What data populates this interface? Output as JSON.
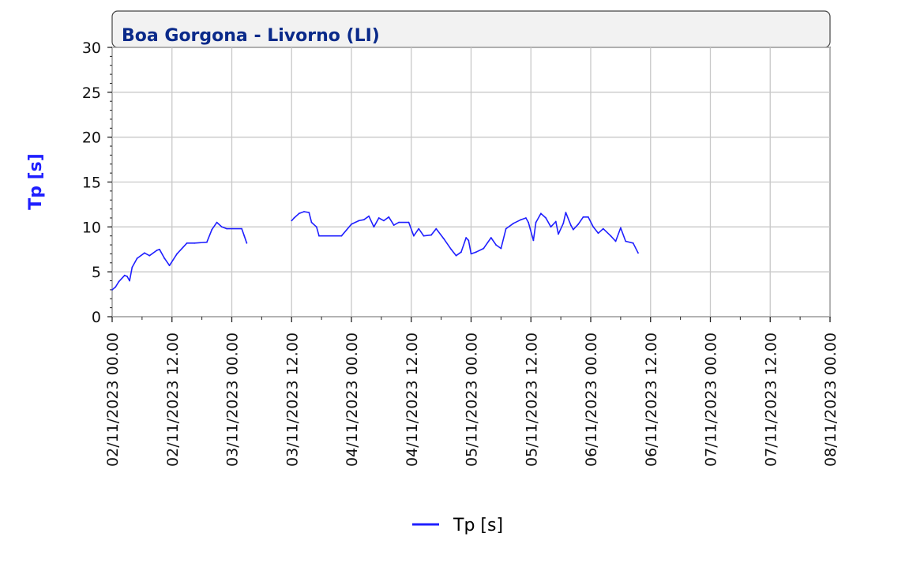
{
  "chart_data": {
    "type": "line",
    "title": "Boa Gorgona - Livorno (LI)",
    "ylabel": "Tp [s]",
    "xlabel": "",
    "ylim": [
      0,
      30
    ],
    "yticks": [
      "0",
      "5",
      "10",
      "15",
      "20",
      "25",
      "30"
    ],
    "xlim": [
      "2023-11-02 00:00",
      "2023-11-08 00:00"
    ],
    "xticks": [
      "02/11/2023 00.00",
      "02/11/2023 12.00",
      "03/11/2023 00.00",
      "03/11/2023 12.00",
      "04/11/2023 00.00",
      "04/11/2023 12.00",
      "05/11/2023 00.00",
      "05/11/2023 12.00",
      "06/11/2023 00.00",
      "06/11/2023 12.00",
      "07/11/2023 00.00",
      "07/11/2023 12.00",
      "08/11/2023 00.00"
    ],
    "grid": true,
    "legend_position": "bottom-center",
    "series": [
      {
        "name": "Tp [s]",
        "color": "#1f1fff",
        "segments": [
          [
            [
              "2023-11-02 00:00",
              3.0
            ],
            [
              "2023-11-02 00:40",
              3.3
            ],
            [
              "2023-11-02 01:20",
              3.9
            ],
            [
              "2023-11-02 02:30",
              4.6
            ],
            [
              "2023-11-02 03:00",
              4.5
            ],
            [
              "2023-11-02 03:30",
              4.0
            ],
            [
              "2023-11-02 04:00",
              5.5
            ],
            [
              "2023-11-02 05:00",
              6.5
            ],
            [
              "2023-11-02 06:30",
              7.1
            ],
            [
              "2023-11-02 07:30",
              6.8
            ],
            [
              "2023-11-02 09:00",
              7.4
            ],
            [
              "2023-11-02 09:30",
              7.5
            ],
            [
              "2023-11-02 10:30",
              6.5
            ],
            [
              "2023-11-02 11:30",
              5.7
            ],
            [
              "2023-11-02 13:00",
              7.0
            ],
            [
              "2023-11-02 15:00",
              8.2
            ],
            [
              "2023-11-02 16:30",
              8.2
            ],
            [
              "2023-11-02 19:00",
              8.3
            ],
            [
              "2023-11-02 20:00",
              9.7
            ],
            [
              "2023-11-02 21:00",
              10.5
            ],
            [
              "2023-11-02 22:00",
              10.0
            ],
            [
              "2023-11-02 23:00",
              9.8
            ],
            [
              "2023-11-03 02:00",
              9.8
            ],
            [
              "2023-11-03 02:30",
              9.0
            ],
            [
              "2023-11-03 03:00",
              8.2
            ]
          ],
          [
            [
              "2023-11-03 12:00",
              10.7
            ],
            [
              "2023-11-03 12:30",
              11.0
            ],
            [
              "2023-11-03 13:30",
              11.5
            ],
            [
              "2023-11-03 14:30",
              11.7
            ],
            [
              "2023-11-03 15:30",
              11.6
            ],
            [
              "2023-11-03 16:00",
              10.5
            ],
            [
              "2023-11-03 17:00",
              10.0
            ],
            [
              "2023-11-03 17:30",
              9.0
            ],
            [
              "2023-11-03 22:00",
              9.0
            ],
            [
              "2023-11-04 00:00",
              10.3
            ],
            [
              "2023-11-04 01:30",
              10.7
            ],
            [
              "2023-11-04 02:30",
              10.8
            ],
            [
              "2023-11-04 03:30",
              11.2
            ],
            [
              "2023-11-04 04:30",
              10.0
            ],
            [
              "2023-11-04 05:30",
              11.0
            ],
            [
              "2023-11-04 06:30",
              10.7
            ],
            [
              "2023-11-04 07:30",
              11.1
            ],
            [
              "2023-11-04 08:30",
              10.2
            ],
            [
              "2023-11-04 09:30",
              10.5
            ],
            [
              "2023-11-04 11:30",
              10.5
            ],
            [
              "2023-11-04 12:30",
              9.0
            ],
            [
              "2023-11-04 13:30",
              9.8
            ],
            [
              "2023-11-04 14:30",
              9.0
            ],
            [
              "2023-11-04 16:00",
              9.1
            ],
            [
              "2023-11-04 17:00",
              9.8
            ],
            [
              "2023-11-04 18:30",
              8.7
            ],
            [
              "2023-11-04 20:00",
              7.5
            ],
            [
              "2023-11-04 21:00",
              6.8
            ],
            [
              "2023-11-04 22:00",
              7.2
            ],
            [
              "2023-11-04 23:00",
              8.8
            ],
            [
              "2023-11-04 23:30",
              8.5
            ],
            [
              "2023-11-05 00:00",
              7.0
            ],
            [
              "2023-11-05 01:00",
              7.2
            ],
            [
              "2023-11-05 02:30",
              7.6
            ],
            [
              "2023-11-05 04:00",
              8.8
            ],
            [
              "2023-11-05 05:00",
              8.0
            ],
            [
              "2023-11-05 06:00",
              7.6
            ],
            [
              "2023-11-05 07:00",
              9.8
            ],
            [
              "2023-11-05 08:30",
              10.4
            ],
            [
              "2023-11-05 10:00",
              10.8
            ],
            [
              "2023-11-05 11:00",
              11.0
            ],
            [
              "2023-11-05 11:30",
              10.5
            ],
            [
              "2023-11-05 12:30",
              8.5
            ],
            [
              "2023-11-05 13:00",
              10.5
            ],
            [
              "2023-11-05 14:00",
              11.5
            ],
            [
              "2023-11-05 15:00",
              11.0
            ],
            [
              "2023-11-05 16:00",
              10.0
            ],
            [
              "2023-11-05 17:00",
              10.6
            ],
            [
              "2023-11-05 17:30",
              9.2
            ],
            [
              "2023-11-05 18:30",
              10.4
            ],
            [
              "2023-11-05 19:00",
              11.6
            ],
            [
              "2023-11-05 20:00",
              10.2
            ],
            [
              "2023-11-05 20:30",
              9.7
            ],
            [
              "2023-11-05 21:30",
              10.3
            ],
            [
              "2023-11-05 22:30",
              11.1
            ],
            [
              "2023-11-05 23:30",
              11.1
            ],
            [
              "2023-11-06 00:30",
              10.0
            ],
            [
              "2023-11-06 01:30",
              9.3
            ],
            [
              "2023-11-06 02:30",
              9.8
            ],
            [
              "2023-11-06 04:00",
              9.0
            ],
            [
              "2023-11-06 05:00",
              8.4
            ],
            [
              "2023-11-06 06:00",
              9.9
            ],
            [
              "2023-11-06 07:00",
              8.4
            ],
            [
              "2023-11-06 08:30",
              8.2
            ],
            [
              "2023-11-06 09:30",
              7.1
            ]
          ]
        ]
      }
    ]
  }
}
